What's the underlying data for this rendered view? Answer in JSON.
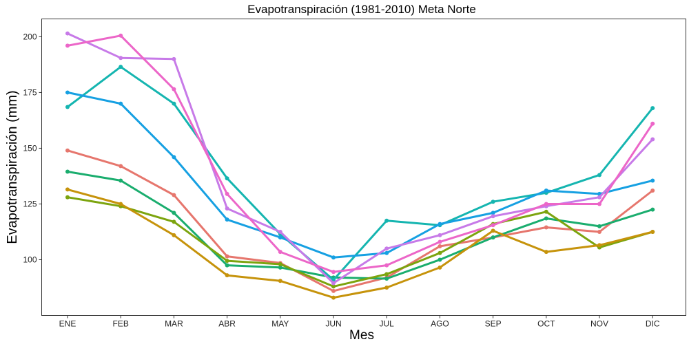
{
  "chart_data": {
    "type": "line",
    "title": "Evapotranspiración (1981-2010)  Meta Norte",
    "xlabel": "Mes",
    "ylabel": "Evapotranspiración (mm)",
    "categories": [
      "ENE",
      "FEB",
      "MAR",
      "ABR",
      "MAY",
      "JUN",
      "JUL",
      "AGO",
      "SEP",
      "OCT",
      "NOV",
      "DIC"
    ],
    "ylim": [
      75,
      208
    ],
    "yticks": [
      100,
      125,
      150,
      175,
      200
    ],
    "grid": false,
    "legend": "none",
    "series": [
      {
        "color": "#e6766d",
        "values": [
          149,
          142,
          129,
          101.5,
          98.5,
          86,
          92,
          106,
          110,
          114.5,
          112.5,
          131
        ]
      },
      {
        "color": "#1aad6e",
        "values": [
          139.5,
          135.5,
          121,
          97.5,
          96.5,
          92,
          91.5,
          100,
          110,
          118.5,
          115,
          122.5
        ]
      },
      {
        "color": "#7ca40e",
        "values": [
          128,
          124,
          117,
          99.5,
          98,
          88,
          93.5,
          103,
          116,
          121.5,
          105.5,
          112.5
        ]
      },
      {
        "color": "#c6930b",
        "values": [
          131.5,
          125,
          111,
          93,
          90.5,
          83,
          87.5,
          96.5,
          113,
          103.5,
          106.5,
          112.5
        ]
      },
      {
        "color": "#15b5b0",
        "values": [
          168.5,
          186.5,
          170,
          136.5,
          111.5,
          91,
          117.5,
          115.5,
          126,
          130,
          138,
          168
        ]
      },
      {
        "color": "#16a0e2",
        "values": [
          175,
          170,
          146,
          118,
          110,
          101,
          103,
          116,
          121,
          131,
          129.5,
          135.5
        ]
      },
      {
        "color": "#c77ae8",
        "values": [
          201.5,
          190.5,
          190,
          123,
          112.5,
          89.5,
          105,
          111,
          119.5,
          124,
          128,
          154
        ]
      },
      {
        "color": "#ec66c8",
        "values": [
          196,
          200.5,
          176.5,
          129.5,
          103.5,
          94.5,
          97.5,
          108,
          115.5,
          125,
          125,
          161
        ]
      }
    ]
  }
}
